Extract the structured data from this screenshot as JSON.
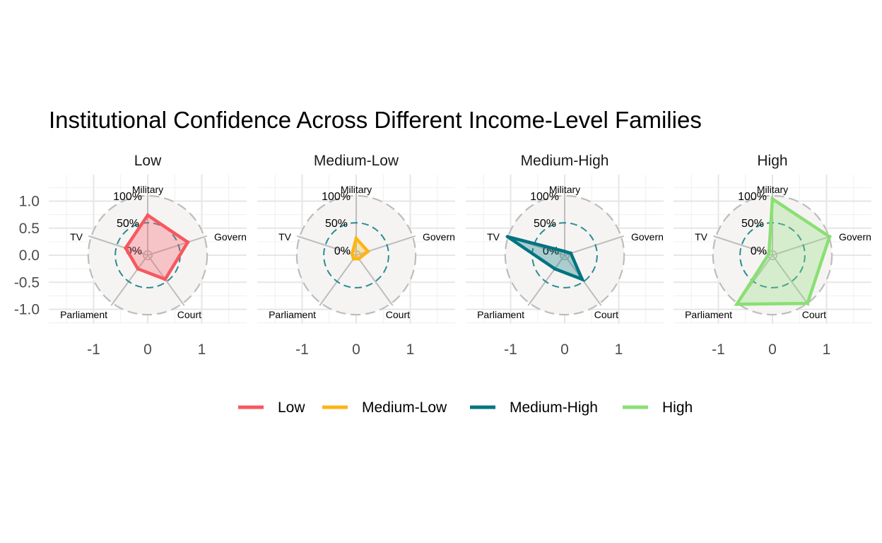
{
  "title": "Institutional Confidence Across Different Income-Level Families",
  "chart_data": {
    "type": "radar",
    "title": "Institutional Confidence Across Different Income-Level Families",
    "axes": [
      "Military",
      "Govern",
      "Court",
      "Parliament",
      "TV"
    ],
    "axis_labels_full": [
      "Military",
      "Govern",
      "Court",
      "Parliament",
      "TV"
    ],
    "ring_labels": [
      "100%",
      "50%",
      "0%"
    ],
    "rings": [
      1.0,
      0.5,
      0.0
    ],
    "x_ticks": [
      {
        "v": -1,
        "label": "-1"
      },
      {
        "v": 0,
        "label": "0"
      },
      {
        "v": 1,
        "label": "1"
      }
    ],
    "y_ticks": [
      {
        "v": 1.0,
        "label": "1.0"
      },
      {
        "v": 0.5,
        "label": "0.5"
      },
      {
        "v": 0.0,
        "label": "0.0"
      },
      {
        "v": -0.5,
        "label": "-0.5"
      },
      {
        "v": -1.0,
        "label": "-1.0"
      }
    ],
    "xlim": [
      -1.7,
      1.7
    ],
    "ylim": [
      -1.3,
      1.35
    ],
    "grid": true,
    "legend_position": "bottom",
    "series": [
      {
        "name": "Low",
        "color": "#F8575F",
        "values": [
          0.74,
          0.78,
          0.55,
          0.31,
          0.43
        ]
      },
      {
        "name": "Medium-Low",
        "color": "#FDB515",
        "values": [
          0.31,
          0.23,
          0.08,
          0.08,
          0.08
        ]
      },
      {
        "name": "Medium-High",
        "color": "#007480",
        "values": [
          0.07,
          0.12,
          0.55,
          0.31,
          1.11
        ]
      },
      {
        "name": "High",
        "color": "#8ADF74",
        "values": [
          1.04,
          1.11,
          1.1,
          1.12,
          0.07
        ]
      }
    ]
  }
}
